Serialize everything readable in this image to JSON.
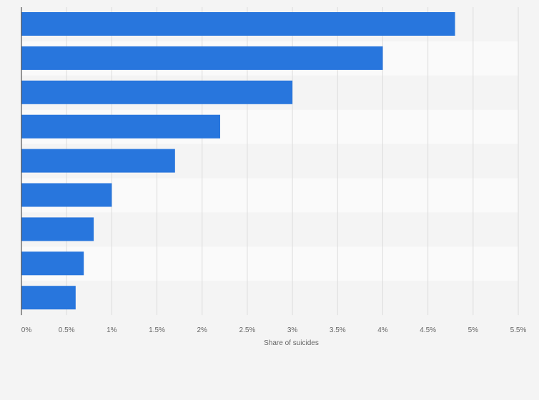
{
  "chart_data": {
    "type": "bar",
    "orientation": "horizontal",
    "categories": [
      "",
      "",
      "",
      "",
      "",
      "",
      "",
      "",
      ""
    ],
    "values": [
      4.8,
      4.0,
      3.0,
      2.2,
      1.7,
      1.0,
      0.8,
      0.69,
      0.6
    ],
    "xlabel": "Share of suicides",
    "xlim": [
      0,
      5.5
    ],
    "x_ticks": [
      "0%",
      "0.5%",
      "1%",
      "1.5%",
      "2%",
      "2.5%",
      "3%",
      "3.5%",
      "4%",
      "4.5%",
      "5%",
      "5.5%"
    ],
    "grid": true,
    "bar_color": "#2876dd",
    "band_colors": [
      "#f4f4f4",
      "#fafafa"
    ]
  }
}
